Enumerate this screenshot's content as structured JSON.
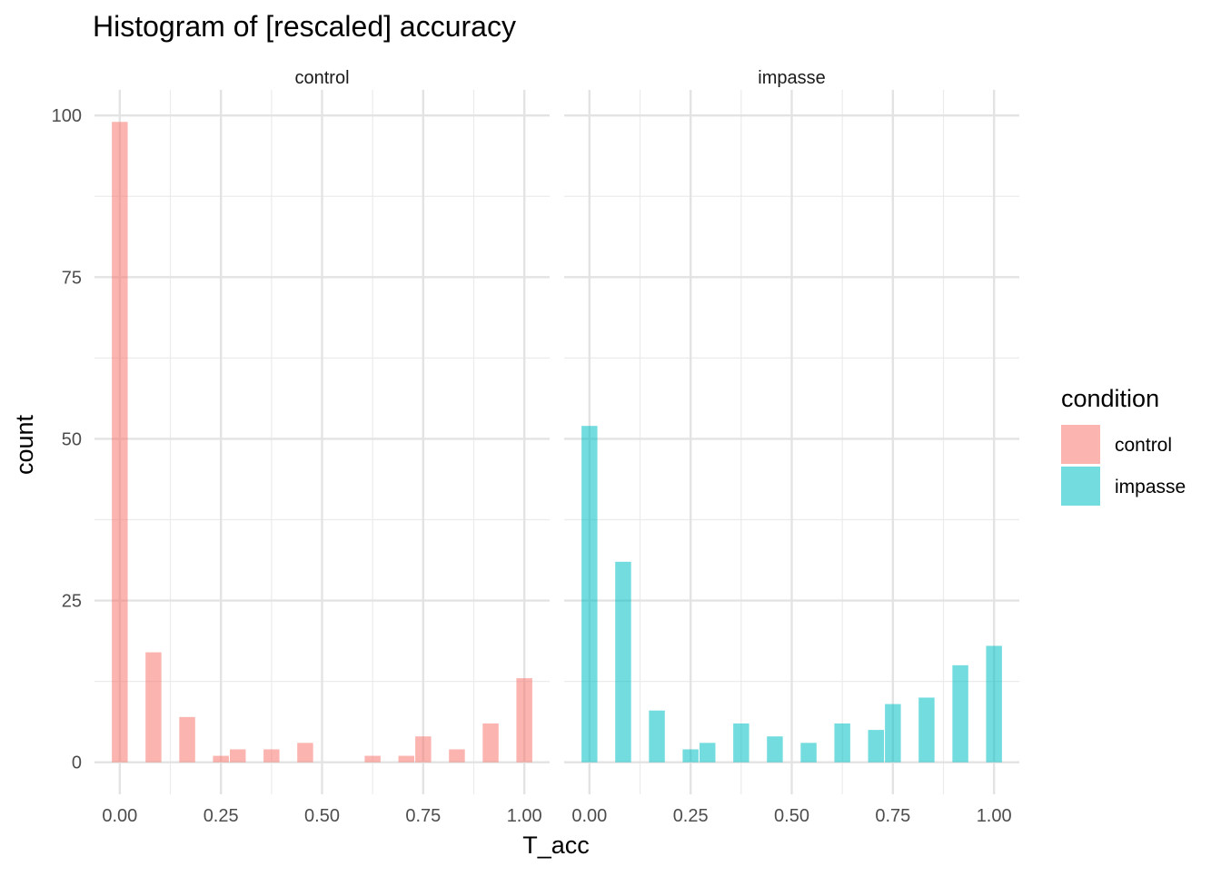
{
  "chart_data": {
    "type": "bar",
    "title": "Histogram of [rescaled] accuracy",
    "xlabel": "T_acc",
    "ylabel": "count",
    "xlim": [
      -0.0625,
      1.0625
    ],
    "ylim": [
      -4.95,
      103.95
    ],
    "x_ticks": [
      "0.00",
      "0.25",
      "0.50",
      "0.75",
      "1.00"
    ],
    "x_tick_values": [
      0,
      0.25,
      0.5,
      0.75,
      1.0
    ],
    "y_ticks": [
      "0",
      "25",
      "50",
      "75",
      "100"
    ],
    "y_tick_values": [
      0,
      25,
      50,
      75,
      100
    ],
    "grid": true,
    "bin_width": 0.0392,
    "legend": {
      "title": "condition",
      "placement": "right",
      "entries": [
        {
          "label": "control",
          "color": "#F8766D"
        },
        {
          "label": "impasse",
          "color": "#00BFC4"
        }
      ]
    },
    "facets": [
      {
        "label": "control",
        "color": "#F8766D",
        "bins": [
          {
            "x": 0.0,
            "count": 99
          },
          {
            "x": 0.0833,
            "count": 17
          },
          {
            "x": 0.1667,
            "count": 7
          },
          {
            "x": 0.25,
            "count": 1
          },
          {
            "x": 0.2917,
            "count": 2
          },
          {
            "x": 0.375,
            "count": 2
          },
          {
            "x": 0.4583,
            "count": 3
          },
          {
            "x": 0.625,
            "count": 1
          },
          {
            "x": 0.7083,
            "count": 1
          },
          {
            "x": 0.75,
            "count": 4
          },
          {
            "x": 0.8333,
            "count": 2
          },
          {
            "x": 0.9167,
            "count": 6
          },
          {
            "x": 1.0,
            "count": 13
          }
        ]
      },
      {
        "label": "impasse",
        "color": "#00BFC4",
        "bins": [
          {
            "x": 0.0,
            "count": 52
          },
          {
            "x": 0.0833,
            "count": 31
          },
          {
            "x": 0.1667,
            "count": 8
          },
          {
            "x": 0.25,
            "count": 2
          },
          {
            "x": 0.2917,
            "count": 3
          },
          {
            "x": 0.375,
            "count": 6
          },
          {
            "x": 0.4583,
            "count": 4
          },
          {
            "x": 0.5417,
            "count": 3
          },
          {
            "x": 0.625,
            "count": 6
          },
          {
            "x": 0.7083,
            "count": 5
          },
          {
            "x": 0.75,
            "count": 9
          },
          {
            "x": 0.8333,
            "count": 10
          },
          {
            "x": 0.9167,
            "count": 15
          },
          {
            "x": 1.0,
            "count": 18
          }
        ]
      }
    ]
  }
}
